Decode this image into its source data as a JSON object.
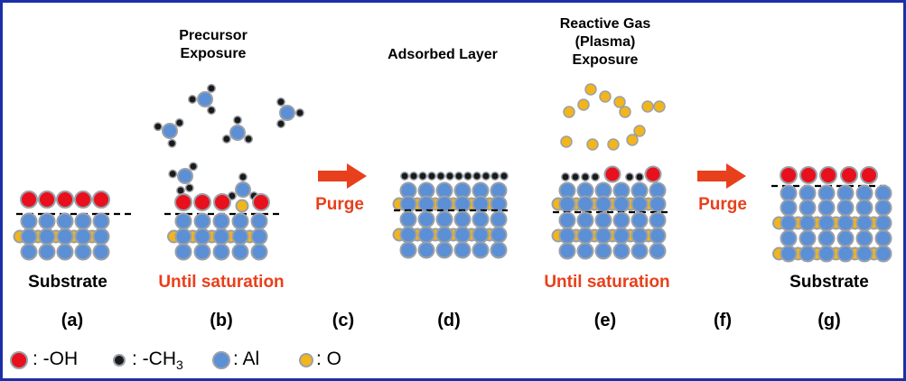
{
  "colors": {
    "frame": "#1a2fa8",
    "oh": "#e8101c",
    "ch3": "#1a1a1a",
    "al": "#5b8fd6",
    "o": "#f2b51a",
    "atom_outline": "#9aa0a8",
    "accent": "#e8401c"
  },
  "panels": {
    "a": {
      "letter": "(a)",
      "label": "Substrate"
    },
    "b": {
      "title_line1": "Precursor",
      "title_line2": "Exposure",
      "letter": "(b)",
      "label": "Until saturation"
    },
    "c": {
      "letter": "(c)",
      "label": "Purge"
    },
    "d": {
      "title": "Adsorbed Layer",
      "letter": "(d)"
    },
    "e": {
      "title_line1": "Reactive Gas",
      "title_line2": "(Plasma)",
      "title_line3": "Exposure",
      "letter": "(e)",
      "label": "Until saturation"
    },
    "f": {
      "letter": "(f)",
      "label": "Purge"
    },
    "g": {
      "letter": "(g)",
      "label": "Substrate"
    }
  },
  "legend": {
    "oh": ": -OH",
    "ch3_prefix": ": -CH",
    "ch3_sub": "3",
    "al": ": Al",
    "o": ": O"
  }
}
